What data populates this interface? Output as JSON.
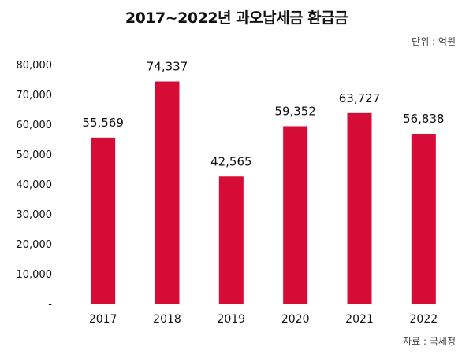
{
  "chart_data": {
    "type": "bar",
    "title": "2017~2022년 과오납세금 환급금",
    "unit_label": "단위 : 억원",
    "source": "자료 : 국세청",
    "categories": [
      "2017",
      "2018",
      "2019",
      "2020",
      "2021",
      "2022"
    ],
    "values": [
      55569,
      74337,
      42565,
      59352,
      63727,
      56838
    ],
    "data_labels": [
      "55,569",
      "74,337",
      "42,565",
      "59,352",
      "63,727",
      "56,838"
    ],
    "ylim": [
      0,
      80000
    ],
    "yticks": [
      "-",
      "10,000",
      "20,000",
      "30,000",
      "40,000",
      "50,000",
      "60,000",
      "70,000",
      "80,000"
    ],
    "bar_color": "#d50c35",
    "axis_color": "#bfbfbf",
    "grid": false,
    "legend": "none"
  }
}
